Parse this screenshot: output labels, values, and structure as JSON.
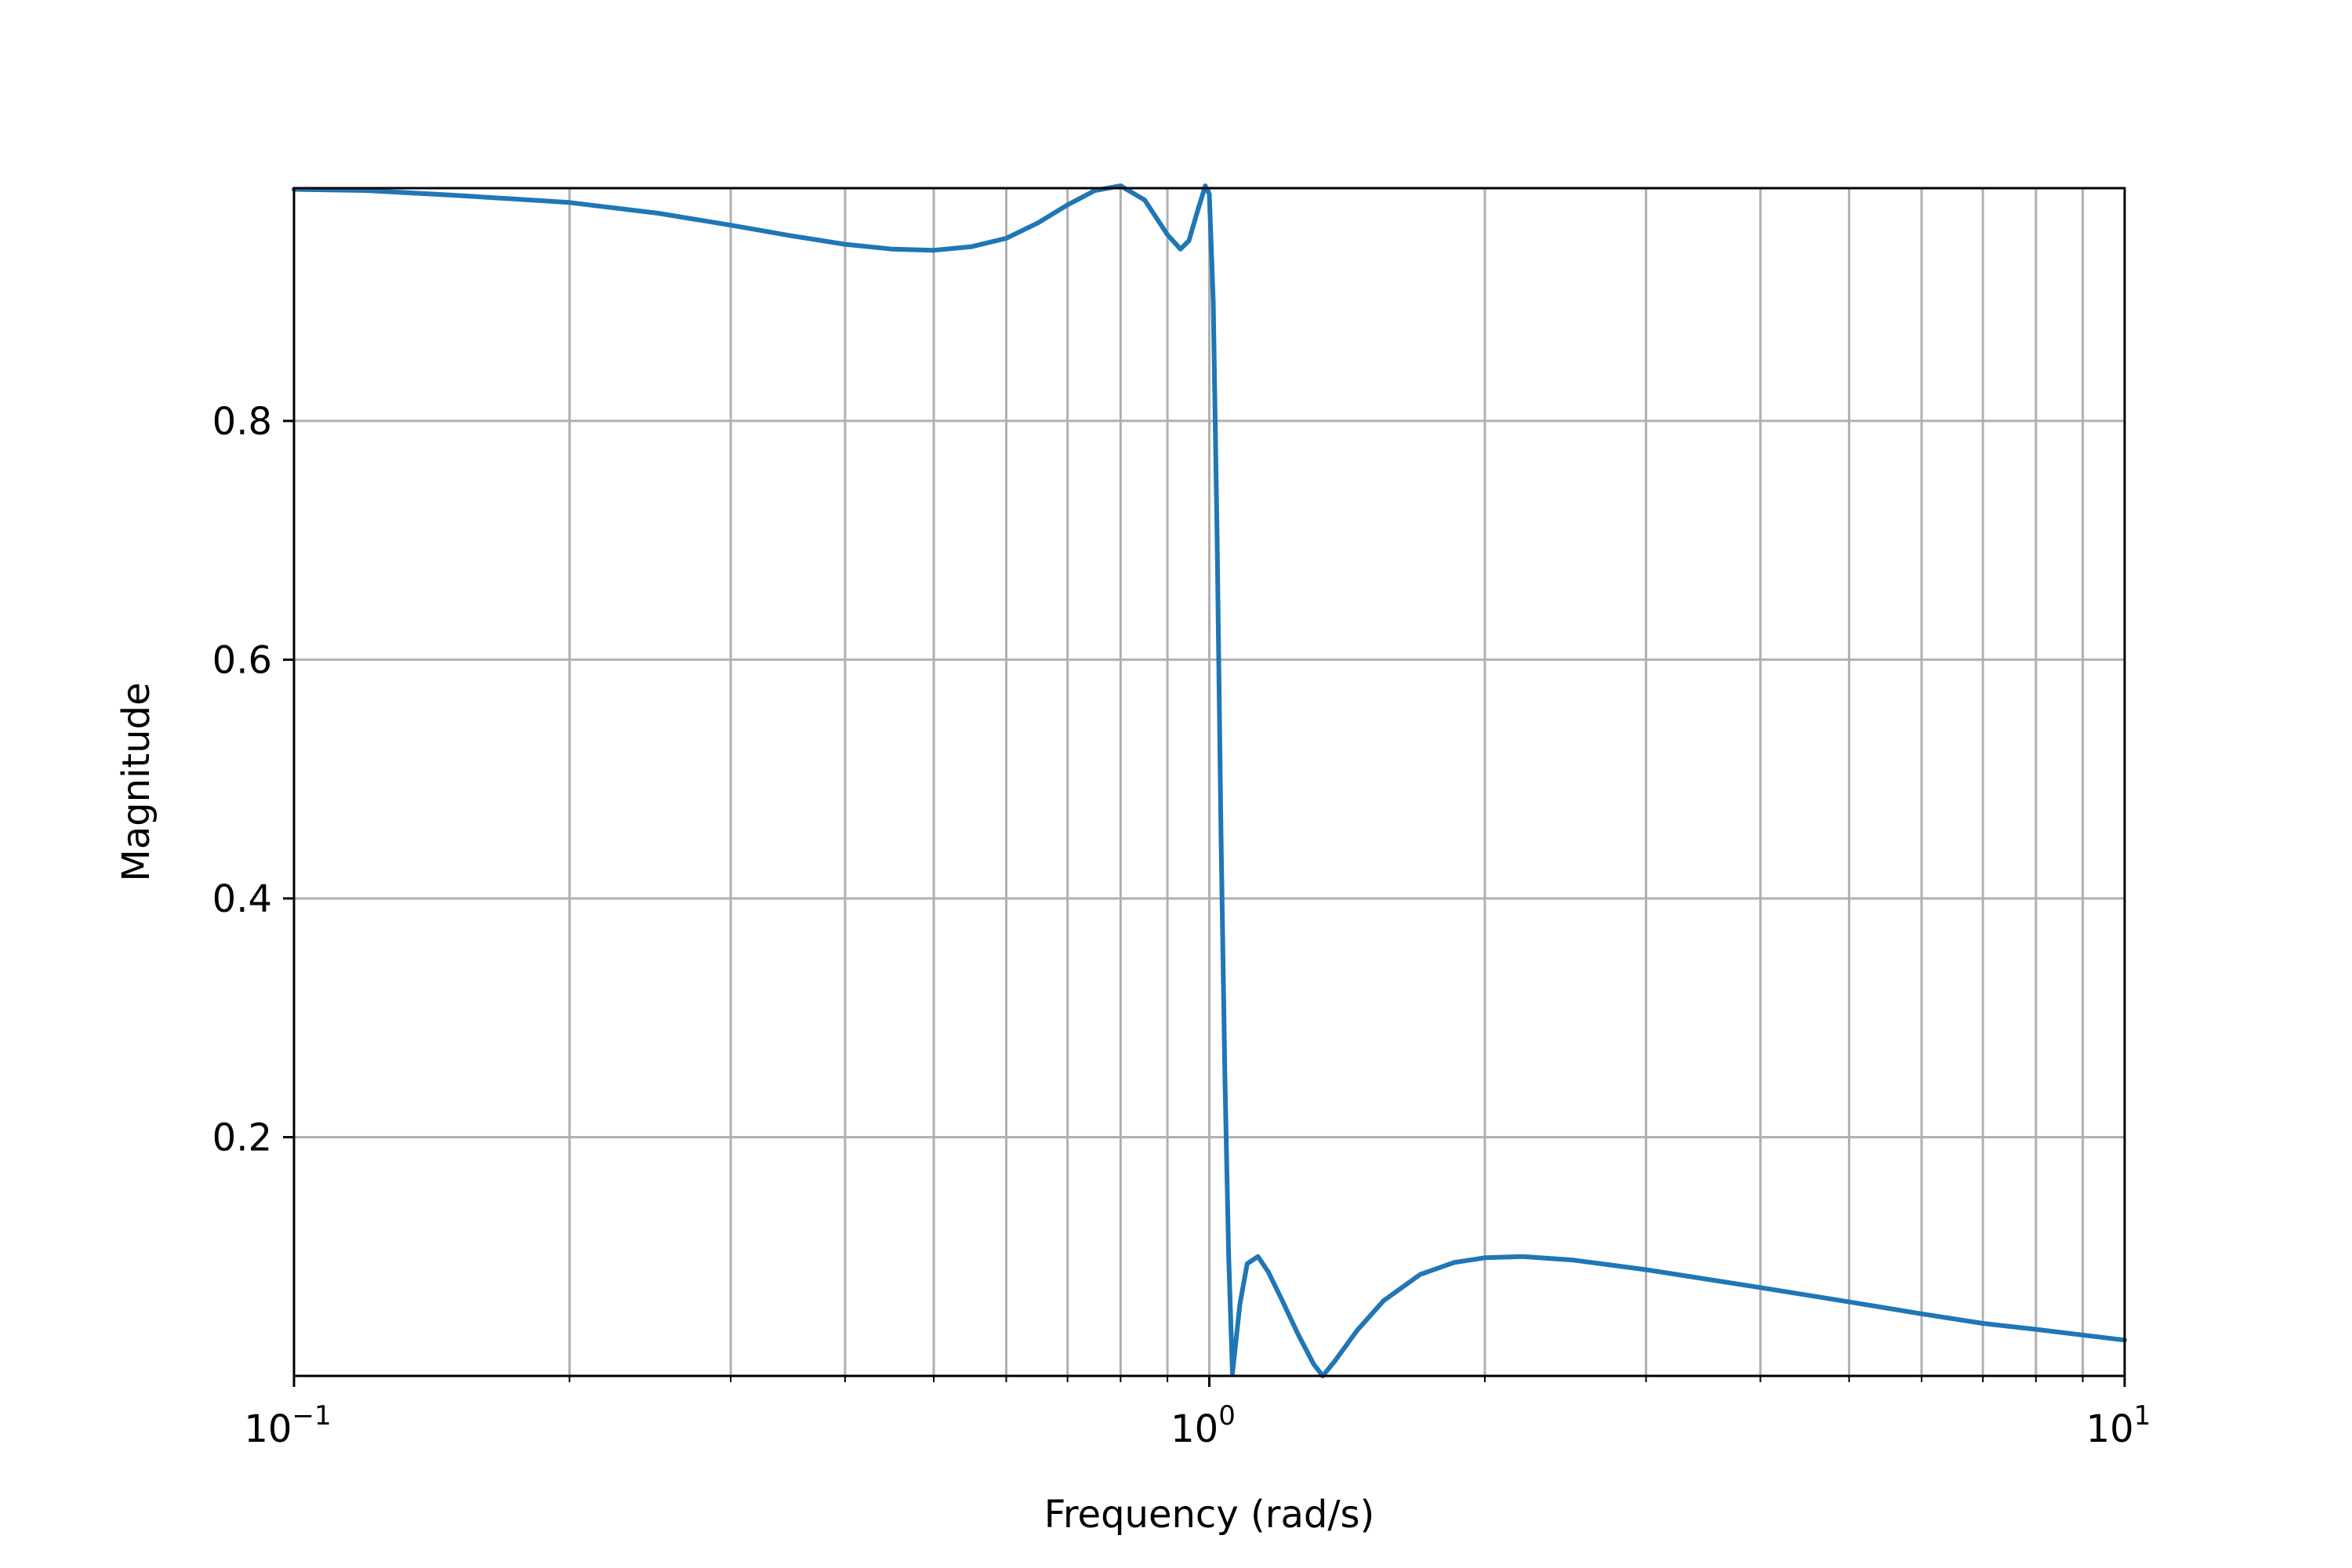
{
  "chart_data": {
    "type": "line",
    "title": "",
    "xlabel": "Frequency (rad/s)",
    "ylabel": "Magnitude",
    "xscale": "log",
    "xlim": [
      0.1,
      10
    ],
    "ylim": [
      0.0,
      0.995
    ],
    "x_ticks": [
      {
        "value": 0.1,
        "base": "10",
        "exp": "−1"
      },
      {
        "value": 1,
        "base": "10",
        "exp": "0"
      },
      {
        "value": 10,
        "base": "10",
        "exp": "1"
      }
    ],
    "y_ticks": [
      {
        "value": 0.2,
        "label": "0.2"
      },
      {
        "value": 0.4,
        "label": "0.4"
      },
      {
        "value": 0.6,
        "label": "0.6"
      },
      {
        "value": 0.8,
        "label": "0.8"
      }
    ],
    "grid": true,
    "line_color": "#1f77b4",
    "series": [
      {
        "x": [
          0.1,
          0.12,
          0.15,
          0.2,
          0.25,
          0.3,
          0.35,
          0.4,
          0.45,
          0.5,
          0.55,
          0.6,
          0.65,
          0.7,
          0.75,
          0.8,
          0.85,
          0.9,
          0.93,
          0.95,
          0.97,
          0.99,
          1.0,
          1.01,
          1.02,
          1.03,
          1.04,
          1.05,
          1.06,
          1.08,
          1.1,
          1.13,
          1.16,
          1.2,
          1.25,
          1.3,
          1.33,
          1.37,
          1.45,
          1.55,
          1.7,
          1.85,
          2.0,
          2.2,
          2.5,
          3.0,
          4.0,
          5.0,
          6.0,
          7.0,
          8.0,
          10.0
        ],
        "y": [
          0.994,
          0.993,
          0.989,
          0.983,
          0.974,
          0.964,
          0.955,
          0.948,
          0.944,
          0.943,
          0.946,
          0.953,
          0.966,
          0.981,
          0.993,
          0.997,
          0.985,
          0.956,
          0.944,
          0.951,
          0.975,
          0.997,
          0.99,
          0.9,
          0.7,
          0.45,
          0.25,
          0.1,
          0.002,
          0.06,
          0.094,
          0.1,
          0.087,
          0.064,
          0.035,
          0.01,
          0.0,
          0.012,
          0.038,
          0.063,
          0.085,
          0.095,
          0.099,
          0.1,
          0.097,
          0.089,
          0.074,
          0.062,
          0.052,
          0.044,
          0.039,
          0.03
        ]
      }
    ]
  }
}
